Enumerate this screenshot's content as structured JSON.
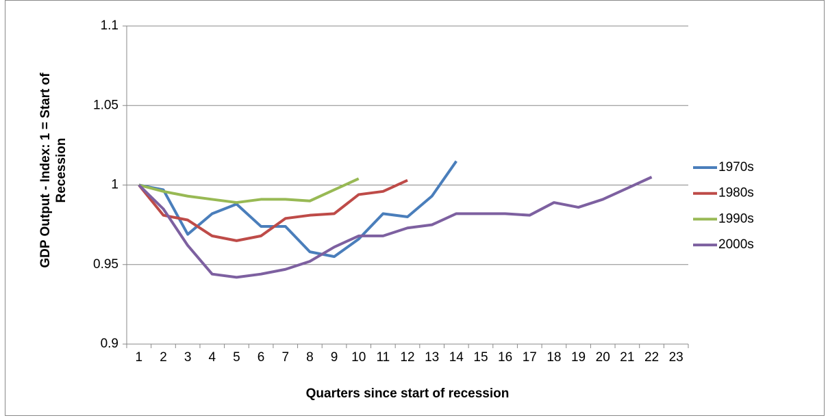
{
  "chart_data": {
    "type": "line",
    "x_label": "Quarters since start of recession",
    "y_label": "GDP Output - Index: 1 = Start of Recession",
    "categories": [
      "1",
      "2",
      "3",
      "4",
      "5",
      "6",
      "7",
      "8",
      "9",
      "10",
      "11",
      "12",
      "13",
      "14",
      "15",
      "16",
      "17",
      "18",
      "19",
      "20",
      "21",
      "22",
      "23"
    ],
    "series": [
      {
        "name": "1970s",
        "color": "#4a7ebb",
        "values": [
          1.0,
          0.997,
          0.969,
          0.982,
          0.988,
          0.974,
          0.974,
          0.958,
          0.955,
          0.966,
          0.982,
          0.98,
          0.993,
          1.015,
          null,
          null,
          null,
          null,
          null,
          null,
          null,
          null,
          null
        ]
      },
      {
        "name": "1980s",
        "color": "#be4b48",
        "values": [
          1.0,
          0.981,
          0.978,
          0.968,
          0.965,
          0.968,
          0.979,
          0.981,
          0.982,
          0.994,
          0.996,
          1.003,
          null,
          null,
          null,
          null,
          null,
          null,
          null,
          null,
          null,
          null,
          null
        ]
      },
      {
        "name": "1990s",
        "color": "#98b954",
        "values": [
          1.0,
          0.996,
          0.993,
          0.991,
          0.989,
          0.991,
          0.991,
          0.99,
          0.997,
          1.004,
          null,
          null,
          null,
          null,
          null,
          null,
          null,
          null,
          null,
          null,
          null,
          null,
          null
        ]
      },
      {
        "name": "2000s",
        "color": "#7d60a0",
        "values": [
          1.0,
          0.985,
          0.962,
          0.944,
          0.942,
          0.944,
          0.947,
          0.952,
          0.961,
          0.968,
          0.968,
          0.973,
          0.975,
          0.982,
          0.982,
          0.982,
          0.981,
          0.989,
          0.986,
          0.991,
          0.998,
          1.005,
          null
        ]
      }
    ],
    "ylim": [
      0.9,
      1.1
    ],
    "yticks": [
      0.9,
      0.95,
      1,
      1.05,
      1.1
    ],
    "grid": true,
    "legend": "right"
  }
}
